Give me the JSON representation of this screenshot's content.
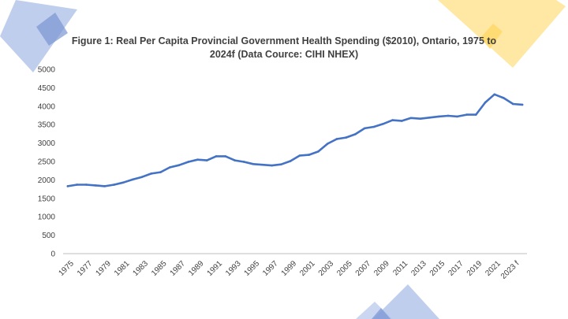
{
  "colors": {
    "line": "#4472c4",
    "axis": "#bfbfbf",
    "text": "#404040",
    "deco_blue": "#a9bde6",
    "deco_blue_dark": "#7b96d4",
    "deco_yellow": "#ffe394",
    "deco_yellow_dark": "#ffd966"
  },
  "chart_data": {
    "type": "line",
    "title": "Figure 1: Real Per Capita Provincial Government  Health Spending ($2010), Ontario, 1975 to 2024f (Data Cource: CIHI NHEX)",
    "title_lines": [
      "Figure 1: Real Per Capita Provincial Government  Health Spending ($2010), Ontario, 1975 to",
      "2024f (Data Cource: CIHI NHEX)"
    ],
    "xlabel": "",
    "ylabel": "",
    "ylim": [
      0,
      5000
    ],
    "yticks": [
      0,
      500,
      1000,
      1500,
      2000,
      2500,
      3000,
      3500,
      4000,
      4500,
      5000
    ],
    "grid": false,
    "legend": "none",
    "x": [
      "1975",
      "1976",
      "1977",
      "1978",
      "1979",
      "1980",
      "1981",
      "1982",
      "1983",
      "1984",
      "1985",
      "1986",
      "1987",
      "1988",
      "1989",
      "1990",
      "1991",
      "1992",
      "1993",
      "1994",
      "1995",
      "1996",
      "1997",
      "1998",
      "1999",
      "2000",
      "2001",
      "2002",
      "2003",
      "2004",
      "2005",
      "2006",
      "2007",
      "2008",
      "2009",
      "2010",
      "2011",
      "2012",
      "2013",
      "2014",
      "2015",
      "2016",
      "2017",
      "2018",
      "2019",
      "2020",
      "2021",
      "2022",
      "2023 f",
      "2024 f"
    ],
    "xtick_labels": [
      "1975",
      "1977",
      "1979",
      "1981",
      "1983",
      "1985",
      "1987",
      "1989",
      "1991",
      "1993",
      "1995",
      "1997",
      "1999",
      "2001",
      "2003",
      "2005",
      "2007",
      "2009",
      "2011",
      "2013",
      "2015",
      "2017",
      "2019",
      "2021",
      "2023 f"
    ],
    "series": [
      {
        "values": [
          1830,
          1870,
          1870,
          1850,
          1830,
          1870,
          1930,
          2010,
          2080,
          2170,
          2210,
          2340,
          2400,
          2490,
          2550,
          2530,
          2640,
          2640,
          2530,
          2490,
          2430,
          2410,
          2390,
          2420,
          2510,
          2660,
          2680,
          2770,
          2980,
          3110,
          3150,
          3240,
          3400,
          3440,
          3520,
          3620,
          3600,
          3680,
          3660,
          3690,
          3720,
          3740,
          3720,
          3770,
          3770,
          4100,
          4320,
          4220,
          4060,
          4040
        ]
      }
    ]
  }
}
